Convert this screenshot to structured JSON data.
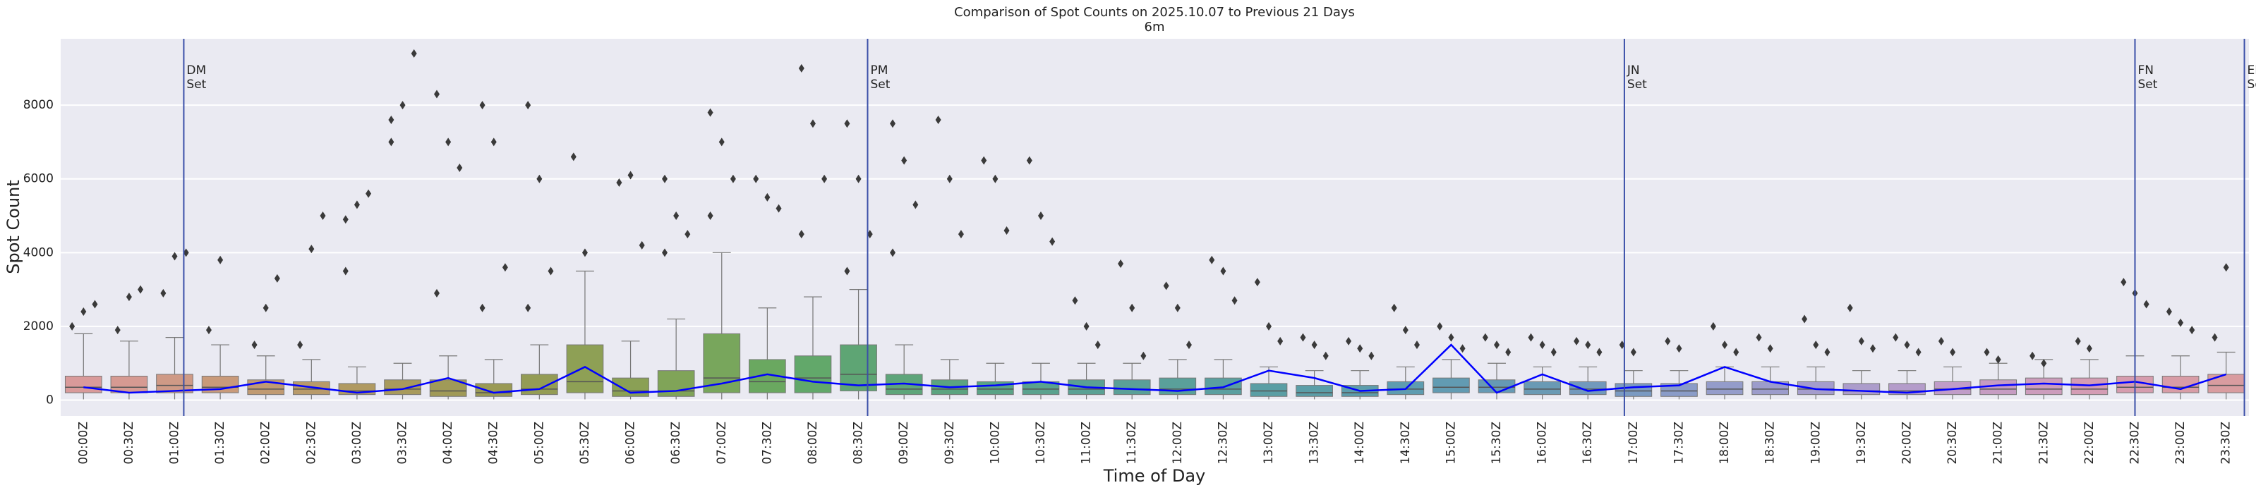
{
  "chart_data": {
    "type": "box",
    "title": "Comparison of Spot Counts on 2025.10.07 to Previous 21 Days",
    "subtitle": "6m",
    "x_label": "Time of Day",
    "y_label": "Spot Count",
    "ylim": [
      -430,
      9800
    ],
    "yticks": [
      0,
      2000,
      4000,
      6000,
      8000
    ],
    "grid": true,
    "categories": [
      "00:00Z",
      "00:30Z",
      "01:00Z",
      "01:30Z",
      "02:00Z",
      "02:30Z",
      "03:00Z",
      "03:30Z",
      "04:00Z",
      "04:30Z",
      "05:00Z",
      "05:30Z",
      "06:00Z",
      "06:30Z",
      "07:00Z",
      "07:30Z",
      "08:00Z",
      "08:30Z",
      "09:00Z",
      "09:30Z",
      "10:00Z",
      "10:30Z",
      "11:00Z",
      "11:30Z",
      "12:00Z",
      "12:30Z",
      "13:00Z",
      "13:30Z",
      "14:00Z",
      "14:30Z",
      "15:00Z",
      "15:30Z",
      "16:00Z",
      "16:30Z",
      "17:00Z",
      "17:30Z",
      "18:00Z",
      "18:30Z",
      "19:00Z",
      "19:30Z",
      "20:00Z",
      "20:30Z",
      "21:00Z",
      "21:30Z",
      "22:00Z",
      "22:30Z",
      "23:00Z",
      "23:30Z"
    ],
    "box_colors": [
      "#d99a9a",
      "#d69a92",
      "#cf9a86",
      "#c99a7a",
      "#c09a72",
      "#b89a6a",
      "#b09a62",
      "#a89a5c",
      "#a09a58",
      "#9a9a55",
      "#949c55",
      "#8ea055",
      "#8aa055",
      "#80a458",
      "#78a65c",
      "#6aa860",
      "#62a86a",
      "#5ea574",
      "#5ea57a",
      "#5ca480",
      "#5aa386",
      "#5aa28e",
      "#5aa194",
      "#5aa098",
      "#5aa09a",
      "#5a9fa0",
      "#5a9ea4",
      "#5a9ea8",
      "#5c9dac",
      "#5e9cb0",
      "#629bb2",
      "#669ab4",
      "#6a9ab4",
      "#7299bc",
      "#7a9ac2",
      "#8a9cc8",
      "#949cca",
      "#9c9ccb",
      "#a49ccc",
      "#ac9ccb",
      "#b49cca",
      "#c09cc8",
      "#c69cc2",
      "#cc9cbc",
      "#d49cb4",
      "#d69cae",
      "#d89ca6",
      "#d99ca0"
    ],
    "boxes": [
      {
        "low": 20,
        "q1": 200,
        "median": 350,
        "q3": 650,
        "high": 1800,
        "outliers": [
          2000,
          2400,
          2600
        ]
      },
      {
        "low": 20,
        "q1": 200,
        "median": 350,
        "q3": 650,
        "high": 1600,
        "outliers": [
          1900,
          2800,
          3000
        ]
      },
      {
        "low": 20,
        "q1": 200,
        "median": 400,
        "q3": 700,
        "high": 1700,
        "outliers": [
          2900,
          3900,
          4000
        ]
      },
      {
        "low": 20,
        "q1": 200,
        "median": 350,
        "q3": 650,
        "high": 1500,
        "outliers": [
          1900,
          3800
        ]
      },
      {
        "low": 20,
        "q1": 150,
        "median": 300,
        "q3": 550,
        "high": 1200,
        "outliers": [
          1500,
          2500,
          3300
        ]
      },
      {
        "low": 20,
        "q1": 150,
        "median": 300,
        "q3": 500,
        "high": 1100,
        "outliers": [
          1500,
          4100,
          5000
        ]
      },
      {
        "low": 20,
        "q1": 150,
        "median": 250,
        "q3": 450,
        "high": 900,
        "outliers": [
          3500,
          5300,
          5600,
          4900
        ]
      },
      {
        "low": 20,
        "q1": 150,
        "median": 300,
        "q3": 550,
        "high": 1000,
        "outliers": [
          7600,
          8000,
          9400,
          7000
        ]
      },
      {
        "low": 20,
        "q1": 100,
        "median": 250,
        "q3": 550,
        "high": 1200,
        "outliers": [
          8300,
          7000,
          6300,
          2900
        ]
      },
      {
        "low": 20,
        "q1": 100,
        "median": 200,
        "q3": 450,
        "high": 1100,
        "outliers": [
          8000,
          7000,
          3600,
          2500
        ]
      },
      {
        "low": 20,
        "q1": 150,
        "median": 300,
        "q3": 700,
        "high": 1500,
        "outliers": [
          8000,
          6000,
          3500,
          2500
        ]
      },
      {
        "low": 20,
        "q1": 200,
        "median": 500,
        "q3": 1500,
        "high": 3500,
        "outliers": [
          6600,
          4000
        ]
      },
      {
        "low": 20,
        "q1": 100,
        "median": 250,
        "q3": 600,
        "high": 1600,
        "outliers": [
          5900,
          6100,
          4200
        ]
      },
      {
        "low": 20,
        "q1": 100,
        "median": 250,
        "q3": 800,
        "high": 2200,
        "outliers": [
          6000,
          5000,
          4500,
          4000
        ]
      },
      {
        "low": 20,
        "q1": 200,
        "median": 600,
        "q3": 1800,
        "high": 4000,
        "outliers": [
          7800,
          7000,
          6000,
          5000
        ]
      },
      {
        "low": 20,
        "q1": 200,
        "median": 500,
        "q3": 1100,
        "high": 2500,
        "outliers": [
          6000,
          5500,
          5200
        ]
      },
      {
        "low": 20,
        "q1": 200,
        "median": 600,
        "q3": 1200,
        "high": 2800,
        "outliers": [
          9000,
          7500,
          6000,
          4500
        ]
      },
      {
        "low": 20,
        "q1": 250,
        "median": 700,
        "q3": 1500,
        "high": 3000,
        "outliers": [
          7500,
          6000,
          4500,
          3500
        ]
      },
      {
        "low": 20,
        "q1": 150,
        "median": 300,
        "q3": 700,
        "high": 1500,
        "outliers": [
          7500,
          6500,
          5300,
          4000
        ]
      },
      {
        "low": 20,
        "q1": 150,
        "median": 300,
        "q3": 550,
        "high": 1100,
        "outliers": [
          7600,
          6000,
          4500
        ]
      },
      {
        "low": 20,
        "q1": 150,
        "median": 300,
        "q3": 500,
        "high": 1000,
        "outliers": [
          6500,
          6000,
          4600
        ]
      },
      {
        "low": 20,
        "q1": 150,
        "median": 300,
        "q3": 500,
        "high": 1000,
        "outliers": [
          6500,
          5000,
          4300
        ]
      },
      {
        "low": 20,
        "q1": 150,
        "median": 300,
        "q3": 550,
        "high": 1000,
        "outliers": [
          2700,
          2000,
          1500
        ]
      },
      {
        "low": 20,
        "q1": 150,
        "median": 300,
        "q3": 550,
        "high": 1000,
        "outliers": [
          3700,
          2500,
          1200
        ]
      },
      {
        "low": 20,
        "q1": 150,
        "median": 300,
        "q3": 600,
        "high": 1100,
        "outliers": [
          3100,
          2500,
          1500
        ]
      },
      {
        "low": 20,
        "q1": 150,
        "median": 300,
        "q3": 600,
        "high": 1100,
        "outliers": [
          3800,
          3500,
          2700
        ]
      },
      {
        "low": 20,
        "q1": 100,
        "median": 250,
        "q3": 450,
        "high": 900,
        "outliers": [
          3200,
          2000,
          1600
        ]
      },
      {
        "low": 20,
        "q1": 100,
        "median": 200,
        "q3": 400,
        "high": 800,
        "outliers": [
          1700,
          1500,
          1200
        ]
      },
      {
        "low": 20,
        "q1": 100,
        "median": 200,
        "q3": 400,
        "high": 800,
        "outliers": [
          1600,
          1400,
          1200
        ]
      },
      {
        "low": 20,
        "q1": 150,
        "median": 300,
        "q3": 500,
        "high": 900,
        "outliers": [
          2500,
          1900,
          1500
        ]
      },
      {
        "low": 20,
        "q1": 200,
        "median": 350,
        "q3": 600,
        "high": 1100,
        "outliers": [
          2000,
          1700,
          1400
        ]
      },
      {
        "low": 20,
        "q1": 200,
        "median": 350,
        "q3": 550,
        "high": 1000,
        "outliers": [
          1700,
          1500,
          1300
        ]
      },
      {
        "low": 20,
        "q1": 150,
        "median": 300,
        "q3": 500,
        "high": 900,
        "outliers": [
          1700,
          1500,
          1300
        ]
      },
      {
        "low": 20,
        "q1": 150,
        "median": 300,
        "q3": 500,
        "high": 900,
        "outliers": [
          1600,
          1500,
          1300
        ]
      },
      {
        "low": 20,
        "q1": 100,
        "median": 250,
        "q3": 450,
        "high": 800,
        "outliers": [
          1500,
          1300
        ]
      },
      {
        "low": 20,
        "q1": 100,
        "median": 250,
        "q3": 450,
        "high": 800,
        "outliers": [
          1600,
          1400
        ]
      },
      {
        "low": 20,
        "q1": 150,
        "median": 300,
        "q3": 500,
        "high": 900,
        "outliers": [
          2000,
          1500,
          1300
        ]
      },
      {
        "low": 20,
        "q1": 150,
        "median": 300,
        "q3": 500,
        "high": 900,
        "outliers": [
          1700,
          1400
        ]
      },
      {
        "low": 20,
        "q1": 150,
        "median": 300,
        "q3": 500,
        "high": 900,
        "outliers": [
          2200,
          1500,
          1300
        ]
      },
      {
        "low": 20,
        "q1": 150,
        "median": 250,
        "q3": 450,
        "high": 800,
        "outliers": [
          2500,
          1600,
          1400
        ]
      },
      {
        "low": 20,
        "q1": 150,
        "median": 250,
        "q3": 450,
        "high": 800,
        "outliers": [
          1700,
          1500,
          1300
        ]
      },
      {
        "low": 20,
        "q1": 150,
        "median": 300,
        "q3": 500,
        "high": 900,
        "outliers": [
          1600,
          1300
        ]
      },
      {
        "low": 20,
        "q1": 150,
        "median": 300,
        "q3": 550,
        "high": 1000,
        "outliers": [
          1300,
          1100
        ]
      },
      {
        "low": 20,
        "q1": 150,
        "median": 300,
        "q3": 600,
        "high": 1100,
        "outliers": [
          1200,
          1000
        ]
      },
      {
        "low": 20,
        "q1": 150,
        "median": 300,
        "q3": 600,
        "high": 1100,
        "outliers": [
          1600,
          1400
        ]
      },
      {
        "low": 20,
        "q1": 200,
        "median": 350,
        "q3": 650,
        "high": 1200,
        "outliers": [
          3200,
          2900,
          2600
        ]
      },
      {
        "low": 20,
        "q1": 200,
        "median": 350,
        "q3": 650,
        "high": 1200,
        "outliers": [
          2400,
          2100,
          1900
        ]
      },
      {
        "low": 20,
        "q1": 200,
        "median": 400,
        "q3": 700,
        "high": 1300,
        "outliers": [
          1700,
          3600
        ]
      }
    ],
    "line": {
      "color": "#0000ff",
      "values": [
        350,
        200,
        250,
        300,
        500,
        350,
        200,
        300,
        600,
        200,
        300,
        900,
        200,
        250,
        450,
        700,
        500,
        400,
        450,
        350,
        400,
        500,
        350,
        300,
        250,
        350,
        800,
        600,
        250,
        300,
        1500,
        200,
        700,
        250,
        350,
        400,
        900,
        500,
        300,
        250,
        200,
        300,
        400,
        450,
        400,
        500,
        300,
        700
      ]
    },
    "event_color": "#3a4fa8",
    "events": [
      {
        "x": 2.2,
        "lines": [
          "DM",
          "Set"
        ]
      },
      {
        "x": 17.2,
        "lines": [
          "PM",
          "Set"
        ]
      },
      {
        "x": 33.8,
        "lines": [
          "JN",
          "Set"
        ]
      },
      {
        "x": 45.0,
        "lines": [
          "FN",
          "Set"
        ]
      },
      {
        "x": 47.4,
        "lines": [
          "EM",
          "Set"
        ]
      }
    ]
  }
}
